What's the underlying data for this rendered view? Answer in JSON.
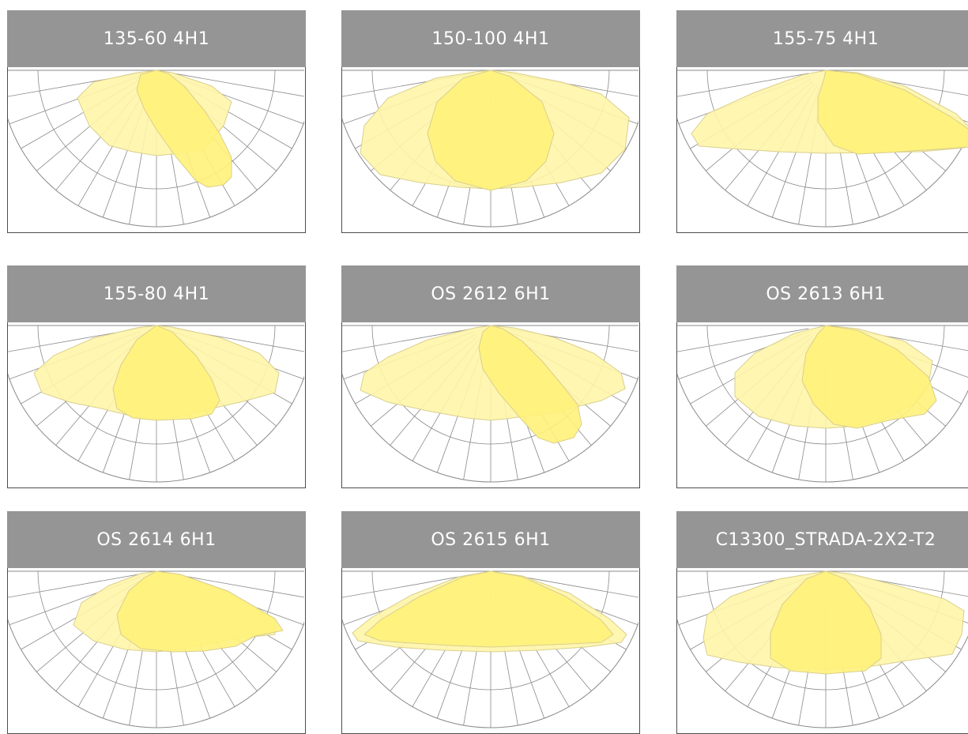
{
  "colors": {
    "header_bg": "#959595",
    "header_text": "#ffffff",
    "grid_line": "#8a8a8a",
    "frame": "#4d4d4d",
    "lobe_outer": "#fff5a8",
    "lobe_inner": "#fff27a",
    "lobe_stroke": "#d9cf8e"
  },
  "cards": [
    {
      "title": "135-60 4H1",
      "outer_lobe": [
        [
          0,
          0
        ],
        [
          20,
          -3
        ],
        [
          70,
          -20
        ],
        [
          95,
          -40
        ],
        [
          85,
          -70
        ],
        [
          60,
          -100
        ],
        [
          30,
          -105
        ],
        [
          0,
          -108
        ],
        [
          -30,
          -103
        ],
        [
          -60,
          -95
        ],
        [
          -85,
          -70
        ],
        [
          -100,
          -35
        ],
        [
          -80,
          -15
        ],
        [
          -25,
          -3
        ]
      ],
      "inner_lobe": [
        [
          0,
          0
        ],
        [
          15,
          -4
        ],
        [
          35,
          -20
        ],
        [
          60,
          -50
        ],
        [
          80,
          -80
        ],
        [
          95,
          -110
        ],
        [
          95,
          -135
        ],
        [
          85,
          -145
        ],
        [
          65,
          -148
        ],
        [
          50,
          -140
        ],
        [
          25,
          -110
        ],
        [
          0,
          -75
        ],
        [
          -15,
          -50
        ],
        [
          -25,
          -25
        ],
        [
          -20,
          -5
        ]
      ]
    },
    {
      "title": "150-100 4H1",
      "outer_lobe": [
        [
          0,
          0
        ],
        [
          30,
          -3
        ],
        [
          90,
          -15
        ],
        [
          140,
          -30
        ],
        [
          175,
          -60
        ],
        [
          170,
          -100
        ],
        [
          140,
          -130
        ],
        [
          90,
          -142
        ],
        [
          40,
          -148
        ],
        [
          0,
          -150
        ],
        [
          -40,
          -148
        ],
        [
          -90,
          -142
        ],
        [
          -140,
          -132
        ],
        [
          -165,
          -105
        ],
        [
          -160,
          -70
        ],
        [
          -130,
          -35
        ],
        [
          -70,
          -10
        ],
        [
          -20,
          -2
        ]
      ],
      "inner_lobe": [
        [
          0,
          0
        ],
        [
          25,
          -8
        ],
        [
          65,
          -40
        ],
        [
          80,
          -80
        ],
        [
          70,
          -115
        ],
        [
          45,
          -140
        ],
        [
          0,
          -152
        ],
        [
          -45,
          -140
        ],
        [
          -70,
          -115
        ],
        [
          -80,
          -80
        ],
        [
          -68,
          -40
        ],
        [
          -35,
          -10
        ]
      ]
    },
    {
      "title": "155-75 4H1",
      "outer_lobe": [
        [
          0,
          0
        ],
        [
          40,
          -3
        ],
        [
          100,
          -20
        ],
        [
          165,
          -55
        ],
        [
          200,
          -90
        ],
        [
          175,
          -98
        ],
        [
          120,
          -103
        ],
        [
          60,
          -104
        ],
        [
          0,
          -105
        ],
        [
          -60,
          -103
        ],
        [
          -120,
          -99
        ],
        [
          -160,
          -96
        ],
        [
          -170,
          -80
        ],
        [
          -150,
          -55
        ],
        [
          -90,
          -28
        ],
        [
          -30,
          -6
        ]
      ],
      "inner_lobe": [
        [
          0,
          0
        ],
        [
          40,
          -4
        ],
        [
          100,
          -25
        ],
        [
          160,
          -60
        ],
        [
          200,
          -88
        ],
        [
          195,
          -96
        ],
        [
          140,
          -100
        ],
        [
          80,
          -104
        ],
        [
          40,
          -106
        ],
        [
          10,
          -95
        ],
        [
          -10,
          -65
        ],
        [
          -10,
          -35
        ],
        [
          -2,
          -10
        ]
      ]
    },
    {
      "title": "155-80 4H1",
      "outer_lobe": [
        [
          0,
          0
        ],
        [
          20,
          -2
        ],
        [
          80,
          -15
        ],
        [
          130,
          -35
        ],
        [
          155,
          -60
        ],
        [
          150,
          -85
        ],
        [
          110,
          -96
        ],
        [
          70,
          -105
        ],
        [
          30,
          -115
        ],
        [
          0,
          -118
        ],
        [
          -30,
          -115
        ],
        [
          -70,
          -105
        ],
        [
          -110,
          -97
        ],
        [
          -145,
          -85
        ],
        [
          -155,
          -60
        ],
        [
          -130,
          -38
        ],
        [
          -80,
          -16
        ],
        [
          -25,
          -3
        ]
      ],
      "inner_lobe": [
        [
          0,
          0
        ],
        [
          20,
          -8
        ],
        [
          50,
          -38
        ],
        [
          70,
          -68
        ],
        [
          80,
          -95
        ],
        [
          70,
          -112
        ],
        [
          45,
          -118
        ],
        [
          0,
          -120
        ],
        [
          -30,
          -117
        ],
        [
          -50,
          -105
        ],
        [
          -55,
          -80
        ],
        [
          -45,
          -50
        ],
        [
          -25,
          -18
        ]
      ]
    },
    {
      "title": "OS 2612 6H1",
      "outer_lobe": [
        [
          0,
          0
        ],
        [
          30,
          -3
        ],
        [
          80,
          -15
        ],
        [
          130,
          -35
        ],
        [
          165,
          -60
        ],
        [
          170,
          -80
        ],
        [
          140,
          -95
        ],
        [
          80,
          -110
        ],
        [
          20,
          -118
        ],
        [
          0,
          -120
        ],
        [
          -30,
          -117
        ],
        [
          -80,
          -108
        ],
        [
          -130,
          -97
        ],
        [
          -165,
          -82
        ],
        [
          -160,
          -60
        ],
        [
          -130,
          -40
        ],
        [
          -80,
          -18
        ],
        [
          -20,
          -3
        ]
      ],
      "inner_lobe": [
        [
          0,
          0
        ],
        [
          15,
          -4
        ],
        [
          40,
          -20
        ],
        [
          65,
          -45
        ],
        [
          90,
          -75
        ],
        [
          110,
          -100
        ],
        [
          115,
          -125
        ],
        [
          105,
          -142
        ],
        [
          80,
          -149
        ],
        [
          60,
          -142
        ],
        [
          40,
          -120
        ],
        [
          10,
          -85
        ],
        [
          -10,
          -55
        ],
        [
          -15,
          -28
        ],
        [
          -10,
          -8
        ]
      ]
    },
    {
      "title": "OS 2613 6H1",
      "outer_lobe": [
        [
          0,
          0
        ],
        [
          40,
          -4
        ],
        [
          100,
          -20
        ],
        [
          135,
          -45
        ],
        [
          130,
          -75
        ],
        [
          110,
          -100
        ],
        [
          70,
          -120
        ],
        [
          30,
          -128
        ],
        [
          0,
          -130
        ],
        [
          -40,
          -127
        ],
        [
          -85,
          -115
        ],
        [
          -115,
          -90
        ],
        [
          -115,
          -60
        ],
        [
          -90,
          -35
        ],
        [
          -40,
          -10
        ]
      ],
      "inner_lobe": [
        [
          0,
          0
        ],
        [
          40,
          -6
        ],
        [
          90,
          -30
        ],
        [
          130,
          -65
        ],
        [
          140,
          -95
        ],
        [
          125,
          -112
        ],
        [
          80,
          -120
        ],
        [
          40,
          -130
        ],
        [
          10,
          -125
        ],
        [
          -15,
          -100
        ],
        [
          -30,
          -70
        ],
        [
          -25,
          -35
        ],
        [
          -10,
          -10
        ]
      ]
    },
    {
      "title": "OS 2614 6H1",
      "outer_lobe": [
        [
          0,
          0
        ],
        [
          30,
          -4
        ],
        [
          90,
          -25
        ],
        [
          150,
          -60
        ],
        [
          150,
          -80
        ],
        [
          100,
          -85
        ],
        [
          50,
          -95
        ],
        [
          20,
          -100
        ],
        [
          0,
          -102
        ],
        [
          -40,
          -99
        ],
        [
          -80,
          -88
        ],
        [
          -105,
          -68
        ],
        [
          -95,
          -40
        ],
        [
          -60,
          -18
        ],
        [
          -20,
          -3
        ]
      ],
      "inner_lobe": [
        [
          0,
          0
        ],
        [
          30,
          -4
        ],
        [
          90,
          -25
        ],
        [
          150,
          -60
        ],
        [
          160,
          -75
        ],
        [
          125,
          -82
        ],
        [
          100,
          -95
        ],
        [
          60,
          -101
        ],
        [
          20,
          -102
        ],
        [
          -20,
          -98
        ],
        [
          -45,
          -80
        ],
        [
          -50,
          -55
        ],
        [
          -35,
          -25
        ],
        [
          -15,
          -8
        ]
      ]
    },
    {
      "title": "OS 2615 6H1",
      "outer_lobe": [
        [
          0,
          0
        ],
        [
          40,
          -6
        ],
        [
          100,
          -28
        ],
        [
          150,
          -60
        ],
        [
          172,
          -80
        ],
        [
          165,
          -90
        ],
        [
          120,
          -96
        ],
        [
          60,
          -100
        ],
        [
          0,
          -102
        ],
        [
          -60,
          -100
        ],
        [
          -120,
          -96
        ],
        [
          -168,
          -88
        ],
        [
          -175,
          -78
        ],
        [
          -150,
          -58
        ],
        [
          -100,
          -30
        ],
        [
          -40,
          -7
        ]
      ],
      "inner_lobe": [
        [
          0,
          0
        ],
        [
          40,
          -7
        ],
        [
          95,
          -32
        ],
        [
          140,
          -62
        ],
        [
          155,
          -80
        ],
        [
          140,
          -90
        ],
        [
          100,
          -92
        ],
        [
          50,
          -94
        ],
        [
          0,
          -96
        ],
        [
          -50,
          -94
        ],
        [
          -100,
          -91
        ],
        [
          -140,
          -88
        ],
        [
          -160,
          -80
        ],
        [
          -140,
          -62
        ],
        [
          -90,
          -32
        ],
        [
          -35,
          -7
        ]
      ]
    },
    {
      "title": "C13300_STRADA-2X2-T2",
      "outer_lobe": [
        [
          0,
          0
        ],
        [
          30,
          -3
        ],
        [
          90,
          -18
        ],
        [
          150,
          -35
        ],
        [
          175,
          -50
        ],
        [
          172,
          -80
        ],
        [
          160,
          -105
        ],
        [
          110,
          -112
        ],
        [
          60,
          -120
        ],
        [
          0,
          -124
        ],
        [
          -60,
          -122
        ],
        [
          -110,
          -115
        ],
        [
          -150,
          -106
        ],
        [
          -155,
          -85
        ],
        [
          -150,
          -55
        ],
        [
          -120,
          -32
        ],
        [
          -60,
          -10
        ]
      ],
      "inner_lobe": [
        [
          0,
          0
        ],
        [
          25,
          -10
        ],
        [
          55,
          -45
        ],
        [
          70,
          -80
        ],
        [
          70,
          -110
        ],
        [
          50,
          -126
        ],
        [
          0,
          -130
        ],
        [
          -45,
          -126
        ],
        [
          -70,
          -110
        ],
        [
          -70,
          -78
        ],
        [
          -55,
          -42
        ],
        [
          -25,
          -10
        ]
      ]
    }
  ]
}
